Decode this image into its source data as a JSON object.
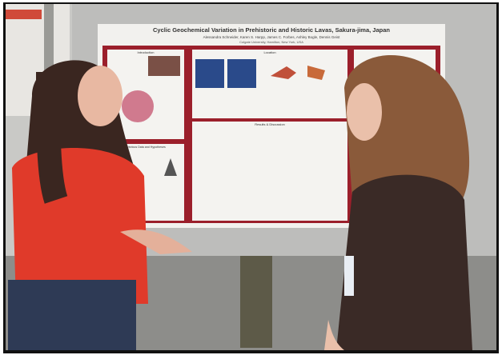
{
  "poster": {
    "title": "Cyclic Geochemical Variation in Prehistoric and Historic Lavas, Sakura-jima, Japan",
    "authors": "Alessandra Schneider, Karen S. Harpp, James C. Forbes, Ashley Bogle, Dennis Geist",
    "affiliation": "Colgate University, Hamilton, New York, USA",
    "sections": [
      "Introduction",
      "Location",
      "Results & Discussion",
      "Previous Data and Hypotheses"
    ]
  }
}
